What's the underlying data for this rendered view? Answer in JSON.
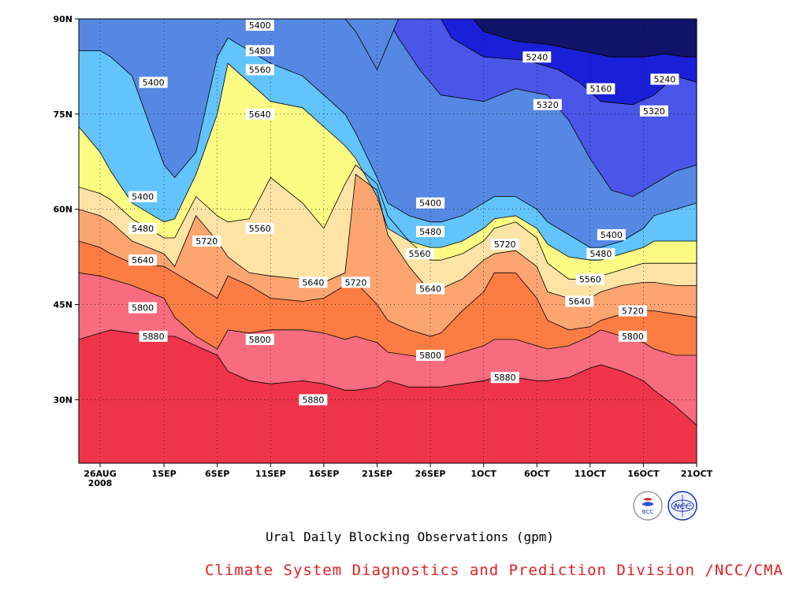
{
  "chart_data": {
    "type": "heatmap",
    "subtype": "filled-contour (Hovmoller, time vs latitude)",
    "title": "Ural Daily Blocking Observations (gpm)",
    "credit": "Climate System Diagnostics and Prediction Division /NCC/CMA",
    "x_ticks": [
      "26AUG\n2008",
      "1SEP",
      "6SEP",
      "11SEP",
      "16SEP",
      "21SEP",
      "26SEP",
      "1OCT",
      "6OCT",
      "11OCT",
      "16OCT",
      "21OCT"
    ],
    "x_tick_labels": [
      {
        "text": "26AUG",
        "sub": "2008"
      },
      {
        "text": "1SEP"
      },
      {
        "text": "6SEP"
      },
      {
        "text": "11SEP"
      },
      {
        "text": "16SEP"
      },
      {
        "text": "21SEP"
      },
      {
        "text": "26SEP"
      },
      {
        "text": "1OCT"
      },
      {
        "text": "6OCT"
      },
      {
        "text": "11OCT"
      },
      {
        "text": "16OCT"
      },
      {
        "text": "21OCT"
      }
    ],
    "x_day_values": [
      0,
      6,
      11,
      16,
      21,
      26,
      31,
      36,
      41,
      46,
      51,
      56
    ],
    "x_range_days": [
      -2,
      56
    ],
    "y_ticks": [
      {
        "label": "90N",
        "lat": 90
      },
      {
        "label": "75N",
        "lat": 75
      },
      {
        "label": "60N",
        "lat": 60
      },
      {
        "label": "45N",
        "lat": 45
      },
      {
        "label": "30N",
        "lat": 30
      }
    ],
    "y_range": [
      20,
      90
    ],
    "grid": true,
    "contour_levels": [
      5160,
      5240,
      5320,
      5400,
      5480,
      5560,
      5640,
      5720,
      5800,
      5880
    ],
    "fill_colors": [
      "#0f1468",
      "#1a20d8",
      "#4a56e8",
      "#5588e2",
      "#63c3fb",
      "#fcfc84",
      "#fde4a6",
      "#fca571",
      "#fc7d44",
      "#f76c7e",
      "#f0344a"
    ],
    "contour_days": [
      -2,
      0,
      1,
      3,
      6,
      7,
      9,
      11,
      12,
      14,
      16,
      19,
      21,
      23,
      24,
      26,
      27,
      29,
      31,
      32,
      34,
      36,
      37,
      39,
      41,
      42,
      44,
      46,
      47,
      49,
      51,
      52,
      54,
      56
    ],
    "contours": [
      {
        "level": 5880,
        "lat": [
          39.5,
          40.5,
          41,
          40.5,
          40,
          40,
          38.5,
          37,
          34.5,
          33,
          32.5,
          33,
          32.5,
          31.5,
          31.5,
          32,
          33,
          32,
          32,
          32,
          32.5,
          33,
          33.5,
          33.5,
          33,
          33,
          33.5,
          35,
          35.5,
          34.5,
          33,
          31.5,
          29,
          26
        ]
      },
      {
        "level": 5800,
        "lat": [
          50,
          49.5,
          49,
          48,
          46,
          43,
          40,
          38,
          41,
          40.5,
          41,
          41,
          40.5,
          39.5,
          40,
          39,
          37.5,
          37,
          36.5,
          36.5,
          37.5,
          38.5,
          39.5,
          39.5,
          38.5,
          38,
          38.5,
          40,
          41,
          40,
          39,
          38,
          37,
          37
        ]
      },
      {
        "level": 5720,
        "lat": [
          55,
          54,
          53,
          51.5,
          51,
          50,
          48,
          46,
          49.5,
          48,
          46,
          45.5,
          46,
          48,
          48.5,
          45,
          42.5,
          41,
          40,
          40.5,
          44,
          47,
          50,
          50,
          46,
          42.5,
          41,
          41.5,
          42.5,
          43.5,
          44,
          44,
          43.5,
          43
        ]
      },
      {
        "level": 5640,
        "lat": [
          60,
          59,
          58,
          55,
          53,
          51,
          59,
          55,
          52.5,
          50,
          49.5,
          49,
          48.5,
          50,
          65.5,
          63,
          56,
          51,
          47,
          47.5,
          49,
          52,
          53,
          53.5,
          51,
          47,
          46,
          46,
          47,
          48,
          48.5,
          48.5,
          48,
          48
        ]
      },
      {
        "level": 5560,
        "lat": [
          63.5,
          62.5,
          61.5,
          58.5,
          55.5,
          55.5,
          62,
          59,
          58,
          58.5,
          65,
          61,
          57,
          64,
          67,
          64,
          59,
          55,
          52,
          52,
          53,
          55,
          57,
          58,
          55.5,
          51.5,
          49,
          49,
          49.5,
          50.5,
          51.5,
          51.5,
          51.5,
          51.5
        ]
      },
      {
        "level": 5480,
        "lat": [
          73,
          69,
          66,
          61,
          58,
          58.5,
          65.5,
          75,
          83,
          80,
          77,
          76,
          73,
          70,
          68,
          62,
          57,
          55,
          54,
          54,
          55,
          57,
          58.5,
          59,
          57,
          54.5,
          52.5,
          52,
          52,
          53,
          54,
          55,
          55,
          55
        ]
      },
      {
        "level": 5400,
        "lat": [
          85,
          85,
          84,
          81,
          67,
          65,
          69,
          84,
          87,
          85,
          83,
          81,
          78,
          75,
          72,
          65,
          61,
          59,
          58,
          58,
          59,
          61,
          62,
          62,
          60,
          58,
          56,
          54,
          54,
          55,
          57,
          59,
          60,
          61
        ]
      }
    ],
    "label_values": [
      {
        "text": "5400",
        "day": 15,
        "lat": 89
      },
      {
        "text": "5480",
        "day": 15,
        "lat": 85
      },
      {
        "text": "5560",
        "day": 15,
        "lat": 82
      },
      {
        "text": "5640",
        "day": 15,
        "lat": 75
      },
      {
        "text": "5400",
        "day": 5,
        "lat": 80
      },
      {
        "text": "5400",
        "day": 4,
        "lat": 62
      },
      {
        "text": "5480",
        "day": 4,
        "lat": 57
      },
      {
        "text": "5640",
        "day": 4,
        "lat": 52
      },
      {
        "text": "5720",
        "day": 10,
        "lat": 55
      },
      {
        "text": "5560",
        "day": 15,
        "lat": 57
      },
      {
        "text": "5640",
        "day": 20,
        "lat": 48.5
      },
      {
        "text": "5720",
        "day": 24,
        "lat": 48.5
      },
      {
        "text": "5800",
        "day": 4,
        "lat": 44.5
      },
      {
        "text": "5880",
        "day": 5,
        "lat": 40
      },
      {
        "text": "5800",
        "day": 15,
        "lat": 39.5
      },
      {
        "text": "5880",
        "day": 20,
        "lat": 30
      },
      {
        "text": "5400",
        "day": 31,
        "lat": 61
      },
      {
        "text": "5480",
        "day": 31,
        "lat": 56.5
      },
      {
        "text": "5560",
        "day": 30,
        "lat": 53
      },
      {
        "text": "5640",
        "day": 31,
        "lat": 47.5
      },
      {
        "text": "5800",
        "day": 31,
        "lat": 37
      },
      {
        "text": "5880",
        "day": 38,
        "lat": 33.5
      },
      {
        "text": "5720",
        "day": 38,
        "lat": 54.5
      },
      {
        "text": "5240",
        "day": 41,
        "lat": 84
      },
      {
        "text": "5320",
        "day": 42,
        "lat": 76.5
      },
      {
        "text": "5160",
        "day": 47,
        "lat": 79
      },
      {
        "text": "5240",
        "day": 53,
        "lat": 80.5
      },
      {
        "text": "5320",
        "day": 52,
        "lat": 75.5
      },
      {
        "text": "5400",
        "day": 48,
        "lat": 56
      },
      {
        "text": "5480",
        "day": 47,
        "lat": 53
      },
      {
        "text": "5560",
        "day": 46,
        "lat": 49
      },
      {
        "text": "5640",
        "day": 45,
        "lat": 45.5
      },
      {
        "text": "5720",
        "day": 50,
        "lat": 44
      },
      {
        "text": "5800",
        "day": 50,
        "lat": 40
      }
    ]
  }
}
